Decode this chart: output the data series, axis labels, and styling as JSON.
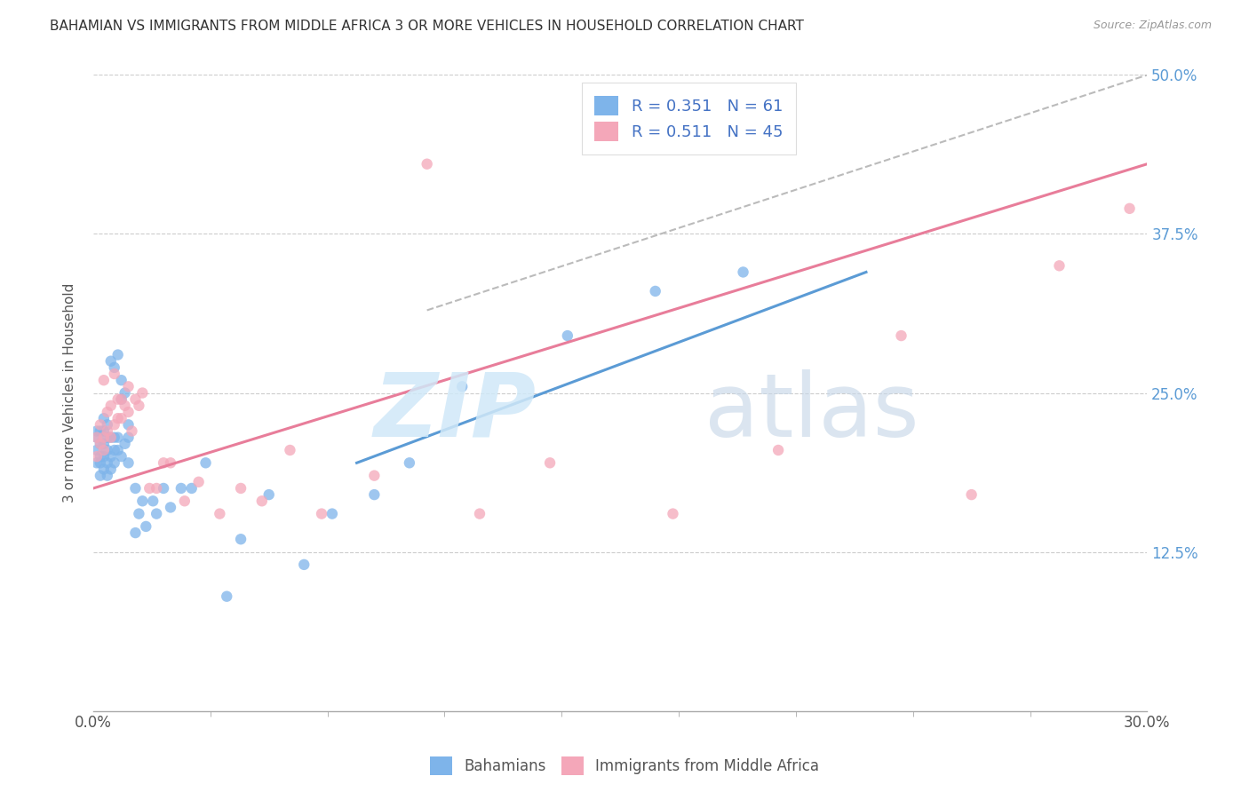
{
  "title": "BAHAMIAN VS IMMIGRANTS FROM MIDDLE AFRICA 3 OR MORE VEHICLES IN HOUSEHOLD CORRELATION CHART",
  "source": "Source: ZipAtlas.com",
  "xlabel_ticks": [
    "0.0%",
    "",
    "",
    "",
    "",
    "",
    "",
    "",
    "",
    "30.0%"
  ],
  "xlabel_values": [
    0.0,
    0.3
  ],
  "ylabel_ticks": [
    "12.5%",
    "25.0%",
    "37.5%",
    "50.0%"
  ],
  "ylabel_values": [
    0.125,
    0.25,
    0.375,
    0.5
  ],
  "xlim": [
    0.0,
    0.3
  ],
  "ylim": [
    0.0,
    0.5
  ],
  "ylabel": "3 or more Vehicles in Household",
  "legend_label1": "Bahamians",
  "legend_label2": "Immigrants from Middle Africa",
  "R1": 0.351,
  "N1": 61,
  "R2": 0.511,
  "N2": 45,
  "color_blue": "#7EB4EA",
  "color_pink": "#F4A7B9",
  "scatter_blue_alpha": 0.75,
  "scatter_pink_alpha": 0.75,
  "line_blue": "#5B9BD5",
  "line_pink": "#E87D9A",
  "line_dashed": "#BBBBBB",
  "watermark_zip": "ZIP",
  "watermark_atlas": "atlas",
  "blue_line_x": [
    0.075,
    0.22
  ],
  "blue_line_y": [
    0.195,
    0.345
  ],
  "pink_line_x": [
    0.0,
    0.3
  ],
  "pink_line_y": [
    0.175,
    0.43
  ],
  "dash_line_x": [
    0.095,
    0.3
  ],
  "dash_line_y": [
    0.315,
    0.5
  ],
  "blue_points_x": [
    0.001,
    0.001,
    0.001,
    0.001,
    0.002,
    0.002,
    0.002,
    0.002,
    0.002,
    0.003,
    0.003,
    0.003,
    0.003,
    0.003,
    0.004,
    0.004,
    0.004,
    0.004,
    0.004,
    0.005,
    0.005,
    0.005,
    0.005,
    0.006,
    0.006,
    0.006,
    0.006,
    0.007,
    0.007,
    0.007,
    0.008,
    0.008,
    0.008,
    0.009,
    0.009,
    0.01,
    0.01,
    0.01,
    0.012,
    0.012,
    0.013,
    0.014,
    0.015,
    0.017,
    0.018,
    0.02,
    0.022,
    0.025,
    0.028,
    0.032,
    0.038,
    0.042,
    0.05,
    0.06,
    0.068,
    0.08,
    0.09,
    0.105,
    0.135,
    0.16,
    0.185
  ],
  "blue_points_y": [
    0.195,
    0.205,
    0.215,
    0.22,
    0.185,
    0.195,
    0.2,
    0.21,
    0.22,
    0.19,
    0.2,
    0.21,
    0.22,
    0.23,
    0.185,
    0.195,
    0.205,
    0.215,
    0.225,
    0.19,
    0.2,
    0.215,
    0.275,
    0.195,
    0.205,
    0.215,
    0.27,
    0.205,
    0.215,
    0.28,
    0.2,
    0.245,
    0.26,
    0.21,
    0.25,
    0.195,
    0.215,
    0.225,
    0.14,
    0.175,
    0.155,
    0.165,
    0.145,
    0.165,
    0.155,
    0.175,
    0.16,
    0.175,
    0.175,
    0.195,
    0.09,
    0.135,
    0.17,
    0.115,
    0.155,
    0.17,
    0.195,
    0.255,
    0.295,
    0.33,
    0.345
  ],
  "pink_points_x": [
    0.001,
    0.001,
    0.002,
    0.002,
    0.003,
    0.003,
    0.003,
    0.004,
    0.004,
    0.005,
    0.005,
    0.006,
    0.006,
    0.007,
    0.007,
    0.008,
    0.008,
    0.009,
    0.01,
    0.01,
    0.011,
    0.012,
    0.013,
    0.014,
    0.016,
    0.018,
    0.02,
    0.022,
    0.026,
    0.03,
    0.036,
    0.042,
    0.048,
    0.056,
    0.065,
    0.08,
    0.095,
    0.11,
    0.13,
    0.165,
    0.195,
    0.23,
    0.25,
    0.275,
    0.295
  ],
  "pink_points_y": [
    0.2,
    0.215,
    0.21,
    0.225,
    0.205,
    0.215,
    0.26,
    0.22,
    0.235,
    0.215,
    0.24,
    0.225,
    0.265,
    0.23,
    0.245,
    0.23,
    0.245,
    0.24,
    0.235,
    0.255,
    0.22,
    0.245,
    0.24,
    0.25,
    0.175,
    0.175,
    0.195,
    0.195,
    0.165,
    0.18,
    0.155,
    0.175,
    0.165,
    0.205,
    0.155,
    0.185,
    0.43,
    0.155,
    0.195,
    0.155,
    0.205,
    0.295,
    0.17,
    0.35,
    0.395
  ]
}
